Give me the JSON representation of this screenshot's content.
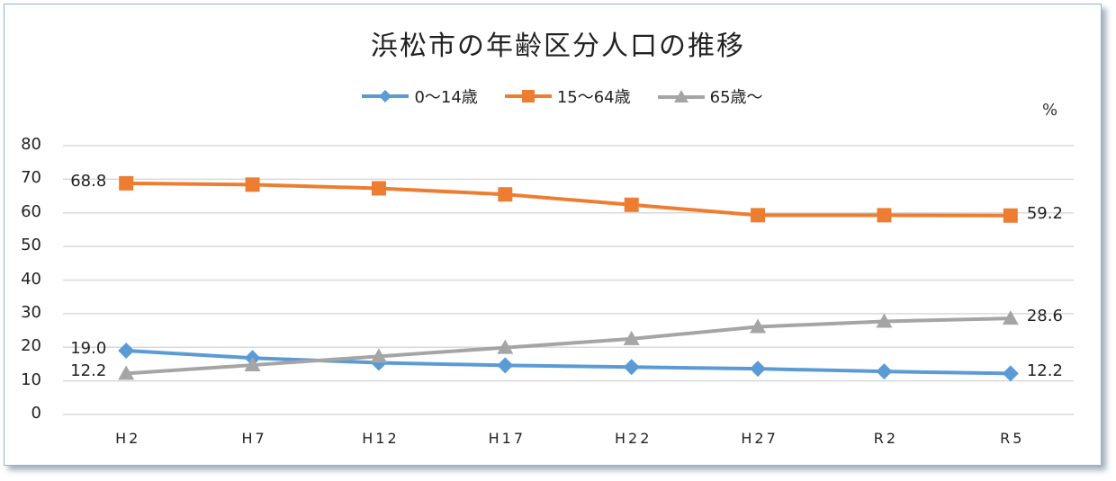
{
  "chart_data": {
    "type": "line",
    "title": "浜松市の年齢区分人口の推移",
    "xlabel": "",
    "ylabel": "%",
    "unit_label": "%",
    "ylim": [
      0,
      80
    ],
    "yticks": [
      "0",
      "10",
      "20",
      "30",
      "40",
      "50",
      "60",
      "70",
      "80"
    ],
    "grid": true,
    "legend_position": "top",
    "categories": [
      "H2",
      "H7",
      "H12",
      "H17",
      "H22",
      "H27",
      "R2",
      "R5"
    ],
    "series": [
      {
        "name": "0〜14歳",
        "color": "#5b9bd5",
        "marker": "diamond",
        "values": [
          19.0,
          16.8,
          15.4,
          14.6,
          14.1,
          13.6,
          12.8,
          12.2
        ]
      },
      {
        "name": "15〜64歳",
        "color": "#ed7d31",
        "marker": "square",
        "values": [
          68.8,
          68.4,
          67.3,
          65.5,
          62.4,
          59.3,
          59.3,
          59.2
        ]
      },
      {
        "name": "65歳〜",
        "color": "#a5a5a5",
        "marker": "triangle",
        "values": [
          12.2,
          14.7,
          17.3,
          19.9,
          22.5,
          26.1,
          27.7,
          28.6
        ]
      }
    ],
    "annotations": [
      {
        "series": "15〜64歳",
        "point": "H2",
        "text": "68.8"
      },
      {
        "series": "15〜64歳",
        "point": "R5",
        "text": "59.2"
      },
      {
        "series": "0〜14歳",
        "point": "H2",
        "text": "19.0"
      },
      {
        "series": "0〜14歳",
        "point": "R5",
        "text": "12.2"
      },
      {
        "series": "65歳〜",
        "point": "H2",
        "text": "12.2"
      },
      {
        "series": "65歳〜",
        "point": "R5",
        "text": "28.6"
      }
    ]
  }
}
